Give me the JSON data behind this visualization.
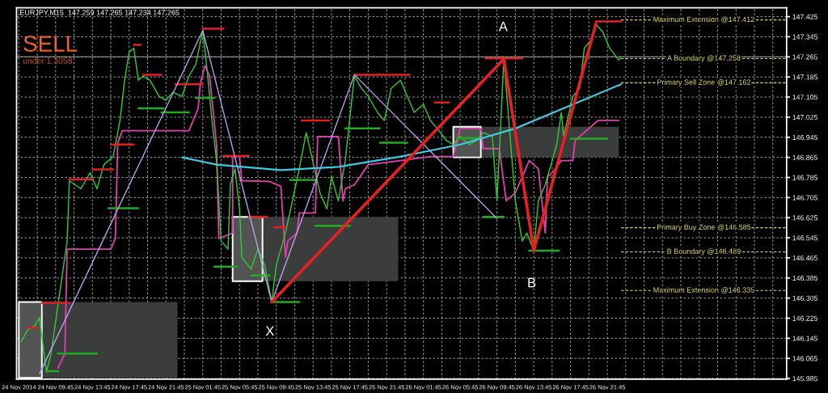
{
  "chart_data": {
    "type": "line",
    "title": "EURJPY,M15  147.259 147.265 147.234 147.265",
    "xlim": [
      "2014-11-24T05:30",
      "2014-11-27T17:15"
    ],
    "ylim": [
      145.982,
      147.46
    ],
    "xticks": [
      {
        "value": "2014-11-24T05:45",
        "label": "24 Nov 2014"
      },
      {
        "value": "2014-11-24T07:45",
        "label": null
      },
      {
        "value": "2014-11-24T09:45",
        "label": "24 Nov 09:45"
      },
      {
        "value": "2014-11-24T11:45",
        "label": null
      },
      {
        "value": "2014-11-24T13:45",
        "label": "24 Nov 13:45"
      },
      {
        "value": "2014-11-24T15:45",
        "label": null
      },
      {
        "value": "2014-11-24T17:45",
        "label": "24 Nov 17:45"
      },
      {
        "value": "2014-11-24T19:45",
        "label": null
      },
      {
        "value": "2014-11-24T21:45",
        "label": "24 Nov 21:45"
      },
      {
        "value": "2014-11-24T23:45",
        "label": null
      },
      {
        "value": "2014-11-25T01:45",
        "label": "25 Nov 01:45"
      },
      {
        "value": "2014-11-25T03:45",
        "label": null
      },
      {
        "value": "2014-11-25T05:45",
        "label": "25 Nov 05:45"
      },
      {
        "value": "2014-11-25T07:45",
        "label": null
      },
      {
        "value": "2014-11-25T09:45",
        "label": "25 Nov 09:45"
      },
      {
        "value": "2014-11-25T11:45",
        "label": null
      },
      {
        "value": "2014-11-25T13:45",
        "label": "25 Nov 13:45"
      },
      {
        "value": "2014-11-25T15:45",
        "label": null
      },
      {
        "value": "2014-11-25T17:45",
        "label": "25 Nov 17:45"
      },
      {
        "value": "2014-11-25T19:45",
        "label": null
      },
      {
        "value": "2014-11-25T21:45",
        "label": "25 Nov 21:45"
      },
      {
        "value": "2014-11-25T23:45",
        "label": null
      },
      {
        "value": "2014-11-26T01:45",
        "label": "26 Nov 01:45"
      },
      {
        "value": "2014-11-26T03:45",
        "label": null
      },
      {
        "value": "2014-11-26T05:45",
        "label": "26 Nov 05:45"
      },
      {
        "value": "2014-11-26T07:45",
        "label": null
      },
      {
        "value": "2014-11-26T09:45",
        "label": "26 Nov 09:45"
      },
      {
        "value": "2014-11-26T11:45",
        "label": null
      },
      {
        "value": "2014-11-26T13:45",
        "label": "26 Nov 13:45"
      },
      {
        "value": "2014-11-26T15:45",
        "label": null
      },
      {
        "value": "2014-11-26T17:45",
        "label": "26 Nov 17:45"
      },
      {
        "value": "2014-11-26T19:45",
        "label": null
      },
      {
        "value": "2014-11-26T21:45",
        "label": "26 Nov 21:45"
      },
      {
        "value": "2014-11-26T23:45",
        "label": null
      },
      {
        "value": "2014-11-27T01:45",
        "label": null
      },
      {
        "value": "2014-11-27T03:45",
        "label": null
      },
      {
        "value": "2014-11-27T05:45",
        "label": null
      },
      {
        "value": "2014-11-27T07:45",
        "label": null
      },
      {
        "value": "2014-11-27T09:45",
        "label": null
      },
      {
        "value": "2014-11-27T11:45",
        "label": null
      },
      {
        "value": "2014-11-27T13:45",
        "label": null
      },
      {
        "value": "2014-11-27T15:45",
        "label": null
      }
    ],
    "yticks": [
      145.985,
      146.065,
      146.145,
      146.225,
      146.305,
      146.385,
      146.465,
      146.545,
      146.625,
      146.705,
      146.785,
      146.865,
      146.945,
      147.025,
      147.105,
      147.185,
      147.265,
      147.345,
      147.425
    ],
    "grid": true,
    "series": [
      {
        "type": "area",
        "color": "#3a3d3c",
        "x": [
          "2014-11-24T05:45",
          "2014-11-24T23:00"
        ],
        "values": [
          null,
          null
        ],
        "lower": [
          145.988,
          145.988
        ],
        "upper": [
          146.289,
          146.289
        ]
      },
      {
        "type": "area",
        "color": "#3a3d3c",
        "x": [
          "2014-11-25T05:00",
          "2014-11-25T23:00"
        ],
        "values": [
          null,
          null
        ],
        "lower": [
          146.372,
          146.372
        ],
        "upper": [
          146.628,
          146.628
        ]
      },
      {
        "type": "area",
        "color": "#3a3d3c",
        "x": [
          "2014-11-26T05:00",
          "2014-11-26T23:00"
        ],
        "values": [
          null,
          null
        ],
        "lower": [
          146.865,
          146.865
        ],
        "upper": [
          146.987,
          146.987
        ]
      },
      {
        "type": "area",
        "color": "#ffffff",
        "x": [
          "2014-11-24T05:45",
          "2014-11-24T08:15"
        ],
        "values": [
          null,
          null
        ],
        "lower": [
          145.988,
          145.988
        ],
        "upper": [
          146.289,
          146.289
        ]
      },
      {
        "type": "area",
        "color": "#ffffff",
        "x": [
          "2014-11-25T05:00",
          "2014-11-25T08:15"
        ],
        "values": [
          null,
          null
        ],
        "lower": [
          146.372,
          146.372
        ],
        "upper": [
          146.628,
          146.628
        ]
      },
      {
        "type": "area",
        "color": "#ffffff",
        "x": [
          "2014-11-26T05:00",
          "2014-11-26T08:00"
        ],
        "values": [
          null,
          null
        ],
        "lower": [
          146.865,
          146.865
        ],
        "upper": [
          146.987,
          146.987
        ]
      },
      {
        "color": "#e040b0",
        "x": [
          "2014-11-24T10:00",
          "2014-11-24T10:45",
          "2014-11-24T11:00",
          "2014-11-24T15:45",
          "2014-11-24T16:15",
          "2014-11-24T16:30",
          "2014-11-24T17:00",
          "2014-11-25T00:15",
          "2014-11-25T01:15",
          "2014-11-25T01:30",
          "2014-11-25T02:00",
          "2014-11-25T02:30",
          "2014-11-25T03:15",
          "2014-11-25T03:30",
          "2014-11-25T05:00",
          "2014-11-25T05:00",
          "2014-11-25T05:45",
          "2014-11-25T06:00",
          "2014-11-25T09:00",
          "2014-11-25T10:15",
          "2014-11-25T10:45",
          "2014-11-25T11:00",
          "2014-11-25T12:00",
          "2014-11-25T12:15",
          "2014-11-25T14:00",
          "2014-11-25T14:15",
          "2014-11-25T16:30",
          "2014-11-25T17:00",
          "2014-11-25T17:15",
          "2014-11-25T18:15",
          "2014-11-25T19:45",
          "2014-11-25T23:15",
          "2014-11-26T02:30",
          "2014-11-26T05:00",
          "2014-11-26T05:45",
          "2014-11-26T08:00",
          "2014-11-26T08:15",
          "2014-11-26T10:00",
          "2014-11-26T10:45",
          "2014-11-26T11:45",
          "2014-11-26T12:30",
          "2014-11-26T13:15",
          "2014-11-26T14:15",
          "2014-11-26T15:00",
          "2014-11-26T15:15",
          "2014-11-26T15:45",
          "2014-11-26T16:45",
          "2014-11-26T18:00",
          "2014-11-26T18:15",
          "2014-11-26T20:45",
          "2014-11-26T23:00"
        ],
        "values": [
          146.027,
          146.084,
          146.5,
          146.5,
          146.542,
          146.922,
          146.971,
          146.971,
          147.06,
          147.163,
          147.23,
          147.188,
          146.916,
          146.542,
          146.564,
          146.868,
          146.868,
          146.772,
          146.769,
          146.75,
          146.468,
          146.532,
          146.564,
          146.644,
          146.644,
          146.948,
          146.948,
          146.692,
          146.74,
          146.756,
          146.836,
          146.852,
          146.868,
          146.868,
          146.98,
          146.98,
          146.9,
          146.9,
          146.692,
          146.724,
          146.788,
          146.852,
          146.82,
          146.564,
          146.788,
          146.804,
          146.852,
          146.852,
          146.932,
          147.012,
          147.012
        ]
      },
      {
        "color": "#33cc33",
        "x": [
          "2014-11-24T06:00",
          "2014-11-24T06:45",
          "2014-11-24T07:30",
          "2014-11-24T08:00",
          "2014-11-24T08:45",
          "2014-11-24T09:15",
          "2014-11-24T10:00",
          "2014-11-24T11:00",
          "2014-11-24T11:15",
          "2014-11-24T12:30",
          "2014-11-24T13:30",
          "2014-11-24T14:15",
          "2014-11-24T15:00",
          "2014-11-24T16:00",
          "2014-11-24T16:15",
          "2014-11-24T16:45",
          "2014-11-24T17:15",
          "2014-11-24T17:45",
          "2014-11-24T18:15",
          "2014-11-24T18:45",
          "2014-11-24T19:15",
          "2014-11-24T20:00",
          "2014-11-24T21:00",
          "2014-11-24T21:45",
          "2014-11-24T22:30",
          "2014-11-24T23:30",
          "2014-11-25T00:15",
          "2014-11-25T01:00",
          "2014-11-25T01:45",
          "2014-11-25T02:15",
          "2014-11-25T02:45",
          "2014-11-25T03:15",
          "2014-11-25T03:45",
          "2014-11-25T04:30",
          "2014-11-25T04:45",
          "2014-11-25T05:15",
          "2014-11-25T05:45",
          "2014-11-25T06:00",
          "2014-11-25T07:00",
          "2014-11-25T07:45",
          "2014-11-25T08:30",
          "2014-11-25T09:15",
          "2014-11-25T09:45",
          "2014-11-25T10:45",
          "2014-11-25T11:30",
          "2014-11-25T12:15",
          "2014-11-25T13:00",
          "2014-11-25T13:30",
          "2014-11-25T14:30",
          "2014-11-25T15:15",
          "2014-11-25T15:45",
          "2014-11-25T16:30",
          "2014-11-25T17:15",
          "2014-11-25T18:00",
          "2014-11-25T18:15",
          "2014-11-25T19:00",
          "2014-11-25T19:45",
          "2014-11-25T20:45",
          "2014-11-25T21:30",
          "2014-11-25T22:15",
          "2014-11-25T23:15",
          "2014-11-26T00:00",
          "2014-11-26T00:45",
          "2014-11-26T01:45",
          "2014-11-26T02:30",
          "2014-11-26T03:15",
          "2014-11-26T04:15",
          "2014-11-26T05:00",
          "2014-11-26T05:45",
          "2014-11-26T06:45",
          "2014-11-26T07:30",
          "2014-11-26T08:15",
          "2014-11-26T09:15",
          "2014-11-26T09:45",
          "2014-11-26T10:30",
          "2014-11-26T11:15",
          "2014-11-26T11:45",
          "2014-11-26T12:30",
          "2014-11-26T13:00",
          "2014-11-26T13:45",
          "2014-11-26T14:15",
          "2014-11-26T15:00",
          "2014-11-26T15:45",
          "2014-11-26T16:15",
          "2014-11-26T16:45",
          "2014-11-26T17:00",
          "2014-11-26T18:00",
          "2014-11-26T18:45",
          "2014-11-26T19:15",
          "2014-11-26T20:00",
          "2014-11-26T20:30",
          "2014-11-26T21:15",
          "2014-11-26T22:00",
          "2014-11-26T23:00",
          "2014-11-26T23:15"
        ],
        "values": [
          146.132,
          146.18,
          146.196,
          146.228,
          146.01,
          146.084,
          146.276,
          146.532,
          146.772,
          146.74,
          146.804,
          146.74,
          146.836,
          146.868,
          146.916,
          147.012,
          147.172,
          147.284,
          147.3,
          147.172,
          147.188,
          147.172,
          147.108,
          147.092,
          147.124,
          147.108,
          147.188,
          147.236,
          147.37,
          147.204,
          147.012,
          146.852,
          146.532,
          146.5,
          146.756,
          146.82,
          146.66,
          146.468,
          146.42,
          146.5,
          146.436,
          146.289,
          146.436,
          146.564,
          146.692,
          146.82,
          146.964,
          146.884,
          146.724,
          146.66,
          146.788,
          146.692,
          146.852,
          147.108,
          147.188,
          147.14,
          147.108,
          147.044,
          147.012,
          147.14,
          147.172,
          147.108,
          147.044,
          147.076,
          147.012,
          146.98,
          146.932,
          146.916,
          146.948,
          146.916,
          146.932,
          146.964,
          146.948,
          146.692,
          147.256,
          146.916,
          146.692,
          146.532,
          146.564,
          146.494,
          146.692,
          146.756,
          146.852,
          146.916,
          147.044,
          146.948,
          147.108,
          147.14,
          147.3,
          147.332,
          147.396,
          147.364,
          147.3,
          147.252,
          147.265
        ]
      },
      {
        "color": "#e02020",
        "x": [
          "2014-11-24T18:15",
          "2014-11-24T19:00",
          null,
          "2014-11-24T19:15",
          "2014-11-24T21:15",
          null,
          "2014-11-24T22:45",
          "2014-11-25T01:45",
          null,
          "2014-11-25T01:45",
          "2014-11-25T04:00",
          null,
          "2014-11-24T15:45",
          "2014-11-24T18:15",
          null,
          "2014-11-24T13:45",
          "2014-11-24T16:00",
          null,
          "2014-11-24T11:15",
          "2014-11-24T13:45",
          null,
          "2014-11-24T08:15",
          "2014-11-24T11:15",
          null,
          "2014-11-24T06:45",
          "2014-11-24T07:45",
          null,
          "2014-11-25T04:00",
          "2014-11-25T06:45",
          null,
          "2014-11-25T06:45",
          "2014-11-25T08:45",
          null,
          "2014-11-25T09:30",
          "2014-11-25T10:45",
          null,
          "2014-11-25T12:30",
          "2014-11-25T15:30",
          null,
          "2014-11-25T18:15",
          "2014-11-26T00:15",
          null,
          "2014-11-26T03:00",
          "2014-11-26T04:30",
          null,
          "2014-11-26T08:30",
          "2014-11-26T12:30",
          null,
          "2014-11-26T20:30",
          "2014-11-26T23:15"
        ],
        "values": [
          147.313,
          147.313,
          null,
          147.194,
          147.194,
          null,
          147.156,
          147.156,
          null,
          147.377,
          147.377,
          null,
          146.916,
          146.916,
          null,
          146.817,
          146.817,
          null,
          146.778,
          146.778,
          null,
          146.286,
          146.286,
          null,
          146.187,
          146.187,
          null,
          146.871,
          146.871,
          null,
          146.628,
          146.628,
          null,
          146.587,
          146.587,
          null,
          147.012,
          147.012,
          null,
          147.194,
          147.194,
          null,
          147.083,
          147.083,
          null,
          147.259,
          147.259,
          null,
          147.406,
          147.406
        ]
      },
      {
        "color": "#22aa22",
        "x": [
          "2014-11-24T08:45",
          "2014-11-24T10:00",
          null,
          "2014-11-24T10:00",
          "2014-11-24T14:15",
          null,
          "2014-11-24T15:30",
          "2014-11-24T18:45",
          null,
          "2014-11-24T18:45",
          "2014-11-24T21:30",
          null,
          "2014-11-24T21:15",
          "2014-11-25T00:15",
          null,
          "2014-11-25T01:00",
          "2014-11-25T03:00",
          null,
          "2014-11-25T03:00",
          "2014-11-25T05:30",
          null,
          "2014-11-25T07:00",
          "2014-11-25T09:00",
          null,
          "2014-11-25T09:15",
          "2014-11-25T12:15",
          null,
          "2014-11-25T11:15",
          "2014-11-25T14:00",
          null,
          "2014-11-25T14:00",
          "2014-11-25T17:45",
          null,
          "2014-11-25T17:15",
          "2014-11-25T21:00",
          null,
          "2014-11-25T21:00",
          "2014-11-26T00:00",
          null,
          "2014-11-26T05:30",
          "2014-11-26T08:00",
          null,
          "2014-11-26T08:15",
          "2014-11-26T10:30",
          null,
          "2014-11-26T13:15",
          "2014-11-26T16:30",
          null,
          "2014-11-26T17:45",
          "2014-11-26T21:45"
        ],
        "values": [
          146.014,
          146.014,
          null,
          146.084,
          146.084,
          null,
          146.663,
          146.663,
          null,
          147.06,
          147.06,
          null,
          147.044,
          147.044,
          null,
          147.102,
          147.102,
          null,
          146.43,
          146.43,
          null,
          146.395,
          146.395,
          null,
          146.289,
          146.289,
          null,
          146.775,
          146.775,
          null,
          146.593,
          146.593,
          null,
          146.98,
          146.98,
          null,
          146.923,
          146.923,
          null,
          146.942,
          146.942,
          null,
          146.628,
          146.628,
          null,
          146.494,
          146.494,
          null,
          146.939,
          146.939
        ]
      },
      {
        "color": "#b8a0e8",
        "x": [
          "2014-11-24T08:00",
          "2014-11-25T01:45",
          "2014-11-25T09:15",
          "2014-11-25T18:15",
          "2014-11-26T09:45"
        ],
        "values": [
          146.004,
          147.37,
          146.289,
          147.194,
          146.622
        ]
      },
      {
        "color": "#40c8e0",
        "x": [
          "2014-11-24T23:30",
          "2014-11-25T03:15",
          "2014-11-25T10:15",
          "2014-11-25T16:30",
          "2014-11-25T23:15",
          "2014-11-26T05:45",
          "2014-11-26T11:45",
          "2014-11-26T17:30",
          "2014-11-26T23:15"
        ],
        "values": [
          146.865,
          146.836,
          146.814,
          146.827,
          146.868,
          146.916,
          146.98,
          147.068,
          147.156
        ]
      },
      {
        "color": "#e82020",
        "x": [
          "2014-11-25T09:15",
          "2014-11-26T10:30",
          "2014-11-26T13:45",
          "2014-11-26T20:30"
        ],
        "values": [
          146.289,
          147.256,
          146.494,
          147.396
        ]
      }
    ],
    "ref_lines": [
      {
        "axis": "y",
        "value": 147.265,
        "color": "#a0a0a0",
        "line_style": "solid"
      },
      {
        "axis": "y",
        "value": 147.412,
        "label": "Maximum Extension @147.412",
        "color": "#e0e060",
        "line_style": "dashed"
      },
      {
        "axis": "y",
        "value": 147.258,
        "label": "A Boundary @147.258",
        "color": "#e0e060",
        "line_style": "dashed"
      },
      {
        "axis": "y",
        "value": 147.162,
        "label": "Primary Sell Zone @147.162",
        "color": "#e0e060",
        "line_style": "dashed"
      },
      {
        "axis": "y",
        "value": 146.585,
        "label": "Primary Buy Zone @146.585",
        "color": "#e0e060",
        "line_style": "dashed"
      },
      {
        "axis": "y",
        "value": 146.489,
        "label": "B Boundary @146.489",
        "color": "#e0e060",
        "line_style": "dashed"
      },
      {
        "axis": "y",
        "value": 146.335,
        "label": "Maximum Extension @146.335",
        "color": "#e0e060",
        "line_style": "dashed"
      }
    ],
    "annotations": [
      "SELL",
      "under 1.3058",
      "A",
      "B",
      "X"
    ]
  }
}
